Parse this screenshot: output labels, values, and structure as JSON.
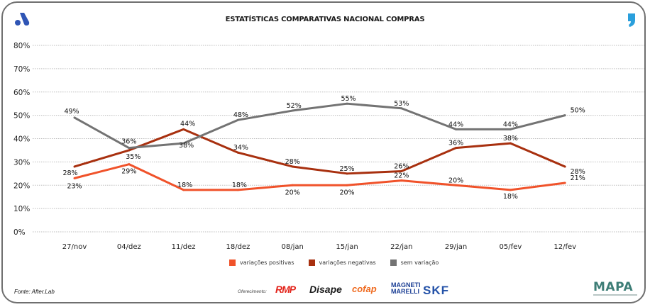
{
  "header": {
    "title": "ESTATÍSTICAS COMPARATIVAS NACIONAL COMPRAS",
    "left_logo_icon": "a-logo-icon",
    "right_logo_icon": "quote-logo-icon"
  },
  "chart_data": {
    "type": "line",
    "title": "ESTATÍSTICAS COMPARATIVAS NACIONAL COMPRAS",
    "xlabel": "",
    "ylabel": "",
    "categories": [
      "27/nov",
      "04/dez",
      "11/dez",
      "18/dez",
      "08/jan",
      "15/jan",
      "22/jan",
      "29/jan",
      "05/fev",
      "12/fev"
    ],
    "ylim": [
      0,
      80
    ],
    "yticks": [
      "0%",
      "10%",
      "20%",
      "30%",
      "40%",
      "50%",
      "60%",
      "70%",
      "80%"
    ],
    "ytick_values": [
      0,
      10,
      20,
      30,
      40,
      50,
      60,
      70,
      80
    ],
    "grid": true,
    "legend_position": "bottom",
    "series": [
      {
        "name": "variações positivas",
        "color": "#f0522a",
        "values": [
          23,
          29,
          18,
          18,
          20,
          20,
          22,
          20,
          18,
          21
        ],
        "labels": [
          "23%",
          "29%",
          "18%",
          "18%",
          "20%",
          "20%",
          "22%",
          "20%",
          "18%",
          "21%"
        ]
      },
      {
        "name": "variações negativas",
        "color": "#a8300f",
        "values": [
          28,
          35,
          44,
          34,
          28,
          25,
          26,
          36,
          38,
          28
        ],
        "labels": [
          "28%",
          "35%",
          "44%",
          "34%",
          "28%",
          "25%",
          "26%",
          "36%",
          "38%",
          "28%"
        ]
      },
      {
        "name": "sem variação",
        "color": "#737373",
        "values": [
          49,
          36,
          38,
          48,
          52,
          55,
          53,
          44,
          44,
          50
        ],
        "labels": [
          "49%",
          "36%",
          "38%",
          "48%",
          "52%",
          "55%",
          "53%",
          "44%",
          "44%",
          "50%"
        ]
      }
    ]
  },
  "footer": {
    "source": "Fonte: After.Lab",
    "sponsor_label": "Oferecimento:",
    "sponsors": [
      "RMP",
      "Disape",
      "cofap",
      "MAGNETI MARELLI",
      "SKF"
    ],
    "brand": "MAPA"
  }
}
